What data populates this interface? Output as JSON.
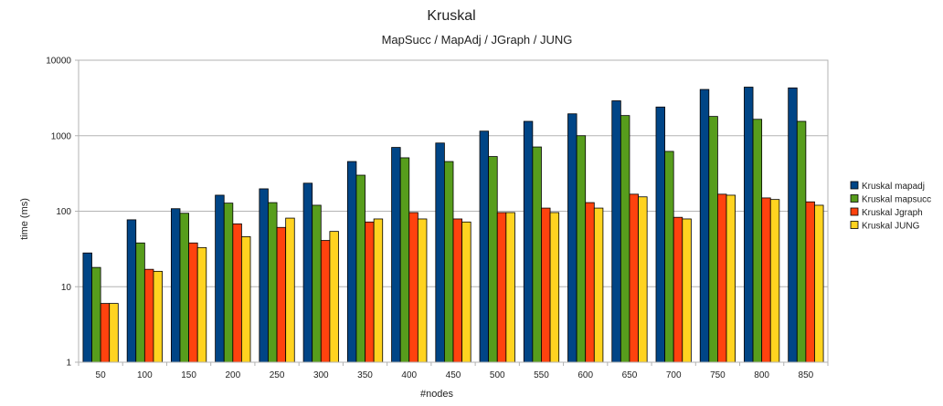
{
  "chart_data": {
    "type": "bar",
    "title": "Kruskal",
    "subtitle": "MapSucc / MapAdj / JGraph / JUNG",
    "xlabel": "#nodes",
    "ylabel": "time (ms)",
    "yscale": "log",
    "ylim": [
      1,
      10000
    ],
    "yticks": [
      "1",
      "10",
      "100",
      "1000",
      "10000"
    ],
    "grid": true,
    "legend_position": "right",
    "categories": [
      "50",
      "100",
      "150",
      "200",
      "250",
      "300",
      "350",
      "400",
      "450",
      "500",
      "550",
      "600",
      "650",
      "700",
      "750",
      "800",
      "850"
    ],
    "series": [
      {
        "name": "Kruskal mapadj",
        "color": "#004586",
        "values": [
          28,
          77,
          108,
          163,
          198,
          235,
          455,
          700,
          800,
          1150,
          1550,
          1950,
          2900,
          2400,
          4100,
          4400,
          4300
        ]
      },
      {
        "name": "Kruskal mapsucc",
        "color": "#579d1c",
        "values": [
          18,
          38,
          94,
          128,
          130,
          120,
          300,
          510,
          455,
          530,
          710,
          1000,
          1850,
          620,
          1800,
          1650,
          1550
        ]
      },
      {
        "name": "Kruskal Jgraph",
        "color": "#ff420e",
        "values": [
          6,
          17,
          38,
          68,
          61,
          41,
          72,
          96,
          79,
          96,
          110,
          130,
          168,
          83,
          168,
          150,
          133
        ]
      },
      {
        "name": "Kruskal JUNG",
        "color": "#ffd320",
        "values": [
          6,
          16,
          33,
          46,
          81,
          54,
          79,
          79,
          72,
          96,
          96,
          110,
          155,
          79,
          163,
          143,
          120
        ]
      }
    ]
  }
}
